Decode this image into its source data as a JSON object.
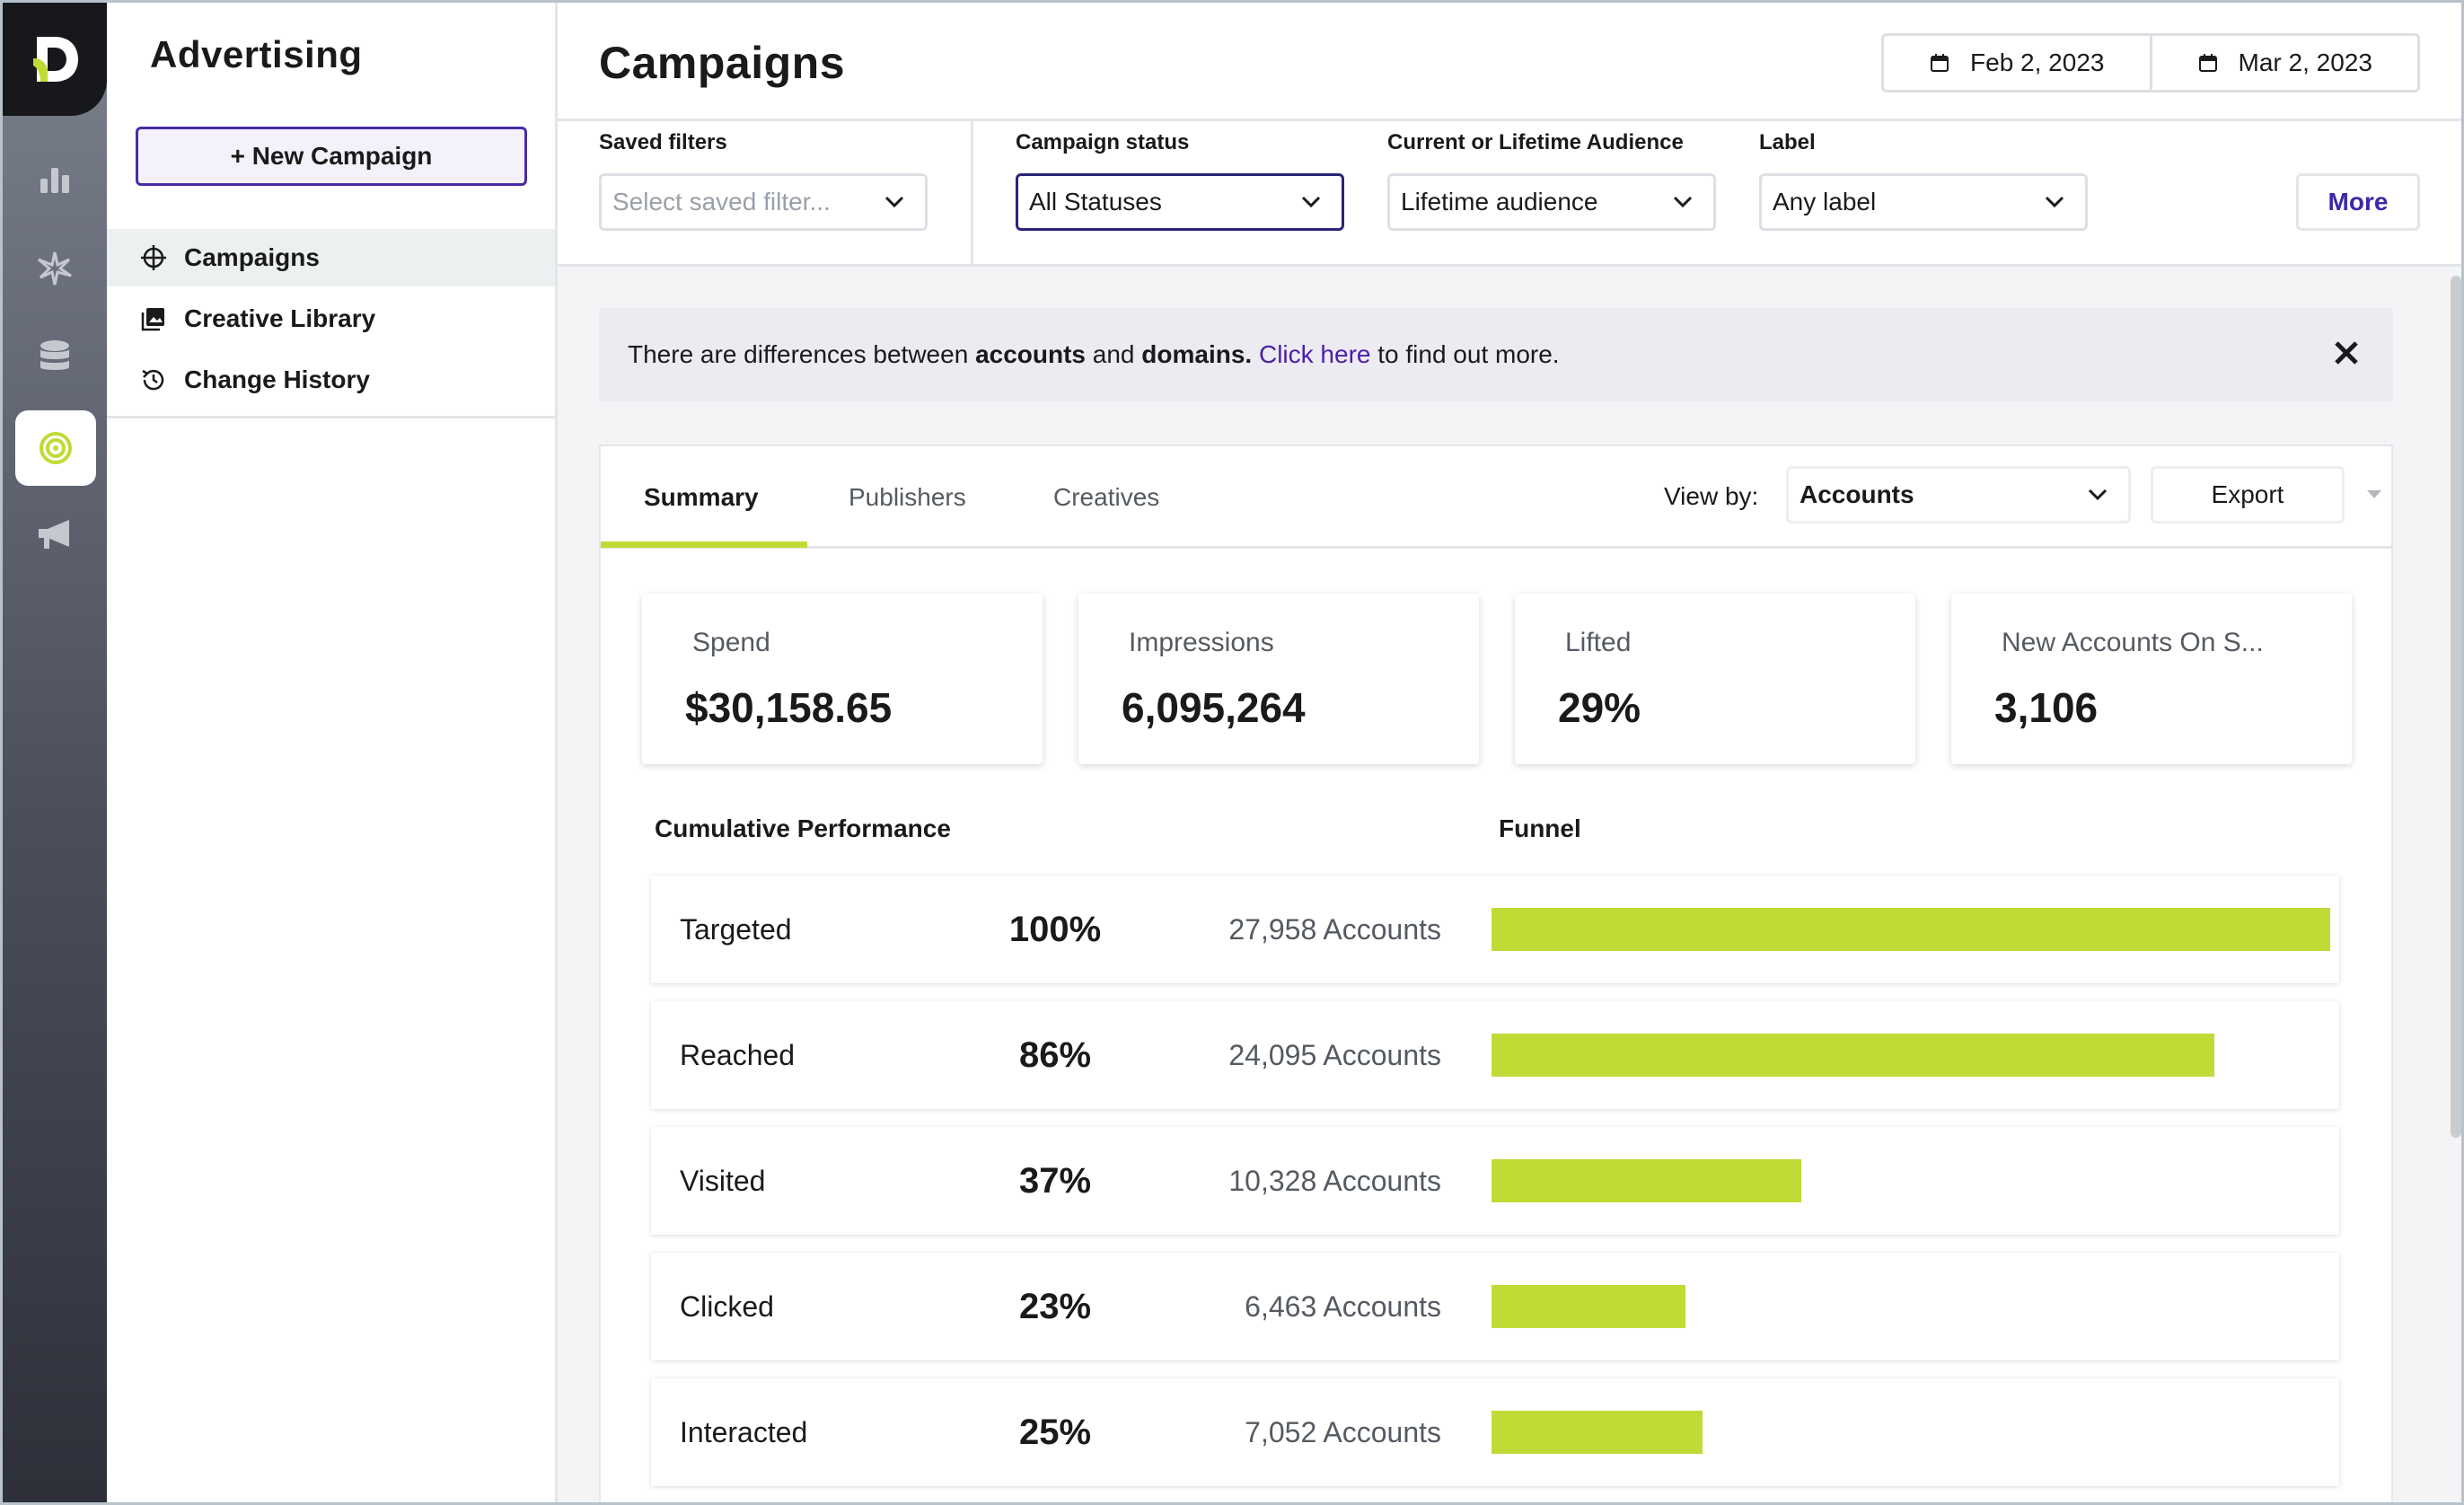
{
  "sidebar": {
    "title": "Advertising",
    "new_campaign_label": "+ New Campaign",
    "items": [
      {
        "label": "Campaigns",
        "icon": "crosshair-icon",
        "active": true
      },
      {
        "label": "Creative Library",
        "icon": "image-library-icon",
        "active": false
      },
      {
        "label": "Change History",
        "icon": "history-icon",
        "active": false
      }
    ]
  },
  "rail": {
    "icons": [
      "logo-icon",
      "bar-chart-icon",
      "sparkle-icon",
      "database-icon",
      "target-icon",
      "megaphone-icon"
    ],
    "active": "target-icon"
  },
  "header": {
    "title": "Campaigns",
    "date_start": "Feb 2, 2023",
    "date_end": "Mar 2, 2023"
  },
  "filters": {
    "saved_filters": {
      "label": "Saved filters",
      "placeholder": "Select saved filter..."
    },
    "campaign_status": {
      "label": "Campaign status",
      "value": "All Statuses"
    },
    "audience": {
      "label": "Current or Lifetime Audience",
      "value": "Lifetime audience"
    },
    "label": {
      "label": "Label",
      "value": "Any label"
    },
    "more_label": "More"
  },
  "banner": {
    "text_1": "There are differences between ",
    "bold_1": "accounts",
    "text_2": " and ",
    "bold_2": "domains.",
    "link": " Click here",
    "text_3": " to find out more."
  },
  "tabs": [
    {
      "label": "Summary",
      "active": true
    },
    {
      "label": "Publishers",
      "active": false
    },
    {
      "label": "Creatives",
      "active": false
    }
  ],
  "view_by": {
    "label": "View by:",
    "value": "Accounts"
  },
  "export_label": "Export",
  "stats": [
    {
      "label": "Spend",
      "value": "$30,158.65"
    },
    {
      "label": "Impressions",
      "value": "6,095,264"
    },
    {
      "label": "Lifted",
      "value": "29%"
    },
    {
      "label": "New Accounts On S...",
      "value": "3,106"
    }
  ],
  "sections": {
    "cumulative": "Cumulative Performance",
    "funnel": "Funnel"
  },
  "funnel": [
    {
      "stage": "Targeted",
      "pct": "100%",
      "count": "27,958 Accounts",
      "fraction": 1.0
    },
    {
      "stage": "Reached",
      "pct": "86%",
      "count": "24,095 Accounts",
      "fraction": 0.862
    },
    {
      "stage": "Visited",
      "pct": "37%",
      "count": "10,328 Accounts",
      "fraction": 0.369
    },
    {
      "stage": "Clicked",
      "pct": "23%",
      "count": "6,463 Accounts",
      "fraction": 0.231
    },
    {
      "stage": "Interacted",
      "pct": "25%",
      "count": "7,052 Accounts",
      "fraction": 0.252
    }
  ],
  "colors": {
    "accent_lime": "#c0db35",
    "accent_purple": "#4a2aa8",
    "link_purple": "#4a1fa8"
  }
}
